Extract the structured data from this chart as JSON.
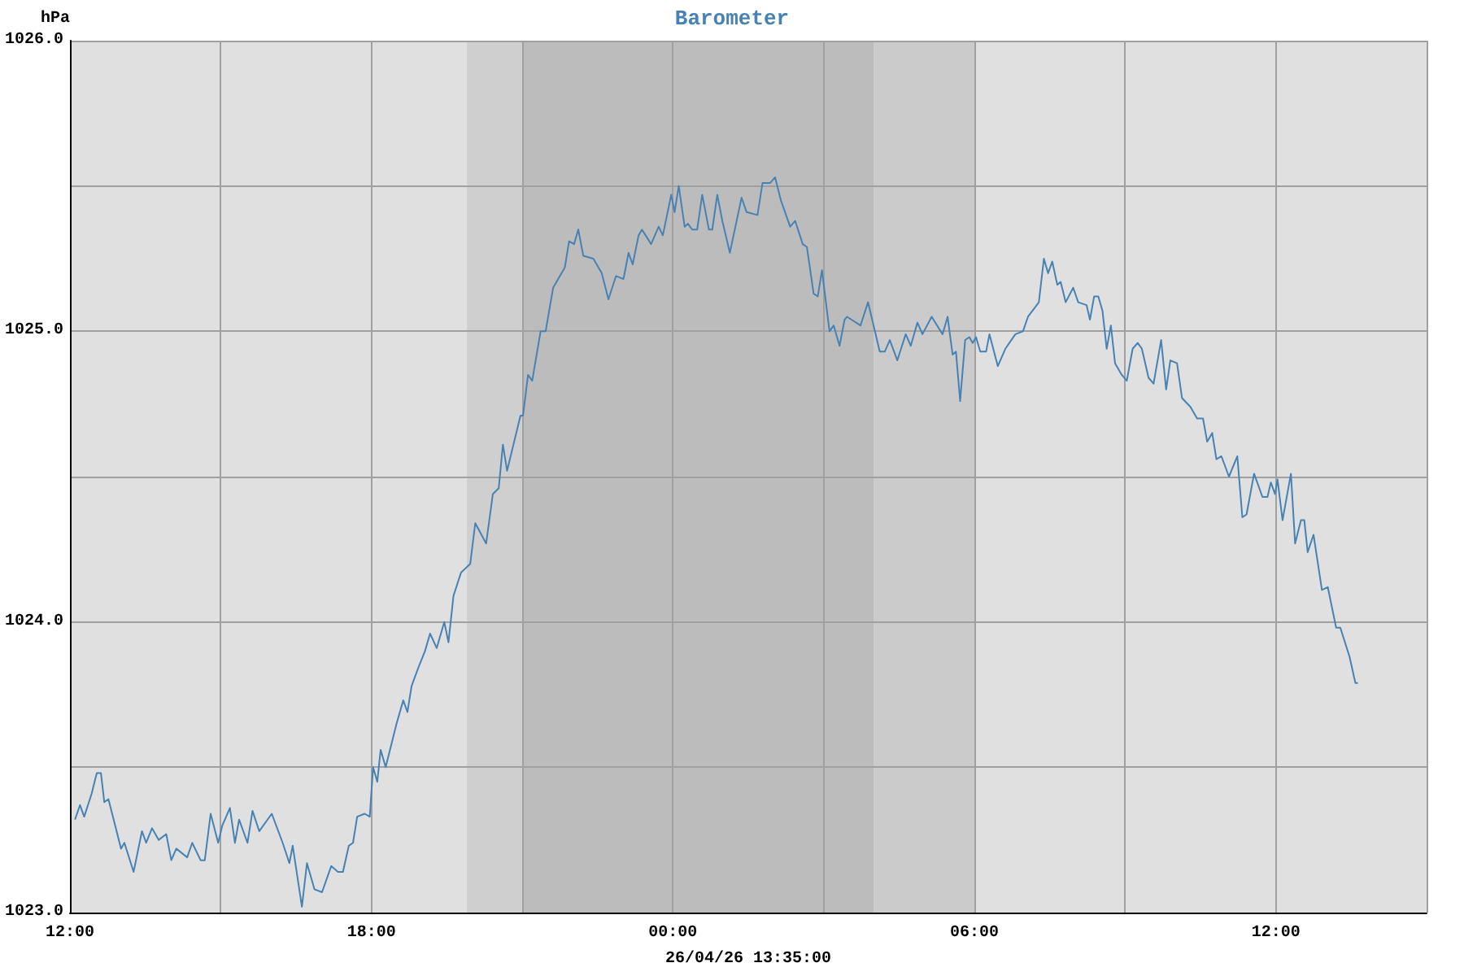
{
  "chart_data": {
    "type": "line",
    "title": "Barometer",
    "ylabel": "hPa",
    "xlabel": "26/04/26 13:35:00",
    "xlim": [
      "--04-25T12:00",
      "--04-26T15:00"
    ],
    "xticks": [
      {
        "value": "--04-25T12:00",
        "label": "12:00"
      },
      {
        "value": "--04-25T15:00",
        "label": null
      },
      {
        "value": "--04-25T18:00",
        "label": "18:00"
      },
      {
        "value": "--04-25T21:00",
        "label": null
      },
      {
        "value": "--04-26T00:00",
        "label": "00:00"
      },
      {
        "value": "--04-26T03:00",
        "label": null
      },
      {
        "value": "--04-26T06:00",
        "label": "06:00"
      },
      {
        "value": "--04-26T09:00",
        "label": null
      },
      {
        "value": "--04-26T12:00",
        "label": "12:00"
      },
      {
        "value": "--04-26T15:00",
        "label": null
      }
    ],
    "ylim": [
      1023,
      1026
    ],
    "yticks": [
      {
        "value": 1023,
        "label": "1023.0"
      },
      {
        "value": 1023.5,
        "label": null
      },
      {
        "value": 1024,
        "label": "1024.0"
      },
      {
        "value": 1024.5,
        "label": null
      },
      {
        "value": 1025,
        "label": "1025.0"
      },
      {
        "value": 1025.5,
        "label": null
      },
      {
        "value": 1026,
        "label": "1026.0"
      }
    ],
    "grid": true,
    "marker": "none",
    "line_style": "solid",
    "bands": [
      {
        "axis": "x",
        "from": "--04-25T19:54",
        "to": "--04-25T21:00",
        "color": "#cfcfcf"
      },
      {
        "axis": "x",
        "from": "--04-25T21:00",
        "to": "--04-26T04:00",
        "color": "#bcbcbc"
      },
      {
        "axis": "x",
        "from": "--04-26T04:00",
        "to": "--04-26T06:00",
        "color": "#cbcbcb"
      }
    ],
    "series": [
      {
        "color": "#4682b4",
        "x": [
          "--04-25T12:06",
          "--04-25T12:12",
          "--04-25T12:17",
          "--04-25T12:26",
          "--04-25T12:32",
          "--04-25T12:37",
          "--04-25T12:41",
          "--04-25T12:46",
          "--04-25T13:01",
          "--04-25T13:05",
          "--04-25T13:16",
          "--04-25T13:26",
          "--04-25T13:31",
          "--04-25T13:38",
          "--04-25T13:46",
          "--04-25T13:55",
          "--04-25T14:01",
          "--04-25T14:07",
          "--04-25T14:20",
          "--04-25T14:26",
          "--04-25T14:36",
          "--04-25T14:41",
          "--04-25T14:48",
          "--04-25T14:57",
          "--04-25T15:02",
          "--04-25T15:11",
          "--04-25T15:17",
          "--04-25T15:22",
          "--04-25T15:32",
          "--04-25T15:38",
          "--04-25T15:46",
          "--04-25T16:01",
          "--04-25T16:14",
          "--04-25T16:22",
          "--04-25T16:26",
          "--04-25T16:37",
          "--04-25T16:43",
          "--04-25T16:52",
          "--04-25T17:01",
          "--04-25T17:12",
          "--04-25T17:20",
          "--04-25T17:26",
          "--04-25T17:33",
          "--04-25T17:38",
          "--04-25T17:43",
          "--04-25T17:52",
          "--04-25T17:58",
          "--04-25T18:02",
          "--04-25T18:07",
          "--04-25T18:11",
          "--04-25T18:17",
          "--04-25T18:30",
          "--04-25T18:38",
          "--04-25T18:43",
          "--04-25T18:48",
          "--04-25T18:57",
          "--04-25T19:04",
          "--04-25T19:10",
          "--04-25T19:18",
          "--04-25T19:27",
          "--04-25T19:32",
          "--04-25T19:38",
          "--04-25T19:47",
          "--04-25T19:58",
          "--04-25T20:04",
          "--04-25T20:17",
          "--04-25T20:25",
          "--04-25T20:32",
          "--04-25T20:37",
          "--04-25T20:42",
          "--04-25T20:58",
          "--04-25T21:01",
          "--04-25T21:07",
          "--04-25T21:12",
          "--04-25T21:22",
          "--04-25T21:28",
          "--04-25T21:37",
          "--04-25T21:51",
          "--04-25T21:56",
          "--04-25T22:02",
          "--04-25T22:07",
          "--04-25T22:13",
          "--04-25T22:25",
          "--04-25T22:35",
          "--04-25T22:43",
          "--04-25T22:52",
          "--04-25T23:01",
          "--04-25T23:07",
          "--04-25T23:12",
          "--04-25T23:19",
          "--04-25T23:23",
          "--04-25T23:34",
          "--04-25T23:43",
          "--04-25T23:48",
          "--04-25T23:58",
          "--04-26T00:02",
          "--04-26T00:07",
          "--04-26T00:14",
          "--04-26T00:18",
          "--04-26T00:23",
          "--04-26T00:29",
          "--04-26T00:35",
          "--04-26T00:43",
          "--04-26T00:47",
          "--04-26T00:53",
          "--04-26T00:59",
          "--04-26T01:08",
          "--04-26T01:22",
          "--04-26T01:28",
          "--04-26T01:41",
          "--04-26T01:47",
          "--04-26T01:56",
          "--04-26T02:02",
          "--04-26T02:09",
          "--04-26T02:20",
          "--04-26T02:26",
          "--04-26T02:35",
          "--04-26T02:40",
          "--04-26T02:48",
          "--04-26T02:53",
          "--04-26T02:58",
          "--04-26T03:07",
          "--04-26T03:12",
          "--04-26T03:19",
          "--04-26T03:25",
          "--04-26T03:28",
          "--04-26T03:44",
          "--04-26T03:53",
          "--04-26T04:07",
          "--04-26T04:13",
          "--04-26T04:19",
          "--04-26T04:28",
          "--04-26T04:38",
          "--04-26T04:44",
          "--04-26T04:52",
          "--04-26T04:58",
          "--04-26T05:09",
          "--04-26T05:22",
          "--04-26T05:28",
          "--04-26T05:34",
          "--04-26T05:38",
          "--04-26T05:43",
          "--04-26T05:49",
          "--04-26T05:54",
          "--04-26T05:58",
          "--04-26T06:02",
          "--04-26T06:07",
          "--04-26T06:14",
          "--04-26T06:18",
          "--04-26T06:28",
          "--04-26T06:37",
          "--04-26T06:49",
          "--04-26T06:58",
          "--04-26T07:04",
          "--04-26T07:17",
          "--04-26T07:23",
          "--04-26T07:28",
          "--04-26T07:33",
          "--04-26T07:39",
          "--04-26T07:43",
          "--04-26T07:49",
          "--04-26T07:58",
          "--04-26T08:04",
          "--04-26T08:14",
          "--04-26T08:18",
          "--04-26T08:23",
          "--04-26T08:28",
          "--04-26T08:33",
          "--04-26T08:38",
          "--04-26T08:43",
          "--04-26T08:48",
          "--04-26T08:56",
          "--04-26T09:02",
          "--04-26T09:09",
          "--04-26T09:15",
          "--04-26T09:20",
          "--04-26T09:28",
          "--04-26T09:34",
          "--04-26T09:43",
          "--04-26T09:49",
          "--04-26T09:54",
          "--04-26T10:02",
          "--04-26T10:08",
          "--04-26T10:18",
          "--04-26T10:26",
          "--04-26T10:33",
          "--04-26T10:38",
          "--04-26T10:44",
          "--04-26T10:49",
          "--04-26T10:55",
          "--04-26T11:04",
          "--04-26T11:14",
          "--04-26T11:20",
          "--04-26T11:25",
          "--04-26T11:34",
          "--04-26T11:44",
          "--04-26T11:50",
          "--04-26T11:54",
          "--04-26T11:59",
          "--04-26T12:02",
          "--04-26T12:08",
          "--04-26T12:18",
          "--04-26T12:23",
          "--04-26T12:30",
          "--04-26T12:34",
          "--04-26T12:38",
          "--04-26T12:45",
          "--04-26T12:55",
          "--04-26T13:02",
          "--04-26T13:12",
          "--04-26T13:17",
          "--04-26T13:28",
          "--04-26T13:35",
          "--04-26T13:38"
        ],
        "values": [
          1023.32,
          1023.37,
          1023.33,
          1023.41,
          1023.48,
          1023.48,
          1023.38,
          1023.39,
          1023.22,
          1023.24,
          1023.14,
          1023.28,
          1023.24,
          1023.29,
          1023.25,
          1023.27,
          1023.18,
          1023.22,
          1023.19,
          1023.24,
          1023.18,
          1023.18,
          1023.34,
          1023.24,
          1023.3,
          1023.36,
          1023.24,
          1023.32,
          1023.24,
          1023.35,
          1023.28,
          1023.34,
          1023.24,
          1023.17,
          1023.23,
          1023.02,
          1023.17,
          1023.08,
          1023.07,
          1023.16,
          1023.14,
          1023.14,
          1023.23,
          1023.24,
          1023.33,
          1023.34,
          1023.33,
          1023.5,
          1023.45,
          1023.56,
          1023.5,
          1023.65,
          1023.73,
          1023.69,
          1023.78,
          1023.85,
          1023.9,
          1023.96,
          1023.91,
          1024.0,
          1023.93,
          1024.09,
          1024.17,
          1024.2,
          1024.34,
          1024.27,
          1024.44,
          1024.46,
          1024.61,
          1024.52,
          1024.71,
          1024.71,
          1024.85,
          1024.83,
          1025.0,
          1025.0,
          1025.15,
          1025.22,
          1025.31,
          1025.3,
          1025.35,
          1025.26,
          1025.25,
          1025.2,
          1025.11,
          1025.19,
          1025.18,
          1025.27,
          1025.23,
          1025.33,
          1025.35,
          1025.3,
          1025.36,
          1025.33,
          1025.47,
          1025.41,
          1025.5,
          1025.36,
          1025.37,
          1025.35,
          1025.35,
          1025.47,
          1025.35,
          1025.35,
          1025.47,
          1025.38,
          1025.27,
          1025.46,
          1025.41,
          1025.4,
          1025.51,
          1025.51,
          1025.53,
          1025.45,
          1025.36,
          1025.38,
          1025.3,
          1025.29,
          1025.13,
          1025.12,
          1025.21,
          1025.0,
          1025.02,
          1024.95,
          1025.04,
          1025.05,
          1025.02,
          1025.1,
          1024.93,
          1024.93,
          1024.97,
          1024.9,
          1024.99,
          1024.95,
          1025.03,
          1024.99,
          1025.05,
          1024.99,
          1025.05,
          1024.92,
          1024.93,
          1024.76,
          1024.97,
          1024.98,
          1024.96,
          1024.98,
          1024.93,
          1024.93,
          1024.99,
          1024.88,
          1024.94,
          1024.99,
          1025.0,
          1025.05,
          1025.1,
          1025.25,
          1025.2,
          1025.24,
          1025.16,
          1025.17,
          1025.1,
          1025.15,
          1025.1,
          1025.09,
          1025.04,
          1025.12,
          1025.12,
          1025.07,
          1024.94,
          1025.02,
          1024.89,
          1024.85,
          1024.83,
          1024.94,
          1024.96,
          1024.94,
          1024.84,
          1024.82,
          1024.97,
          1024.8,
          1024.9,
          1024.89,
          1024.77,
          1024.74,
          1024.7,
          1024.7,
          1024.62,
          1024.65,
          1024.56,
          1024.57,
          1024.5,
          1024.57,
          1024.36,
          1024.37,
          1024.51,
          1024.43,
          1024.43,
          1024.48,
          1024.44,
          1024.49,
          1024.35,
          1024.51,
          1024.27,
          1024.35,
          1024.35,
          1024.24,
          1024.3,
          1024.11,
          1024.12,
          1023.98,
          1023.98,
          1023.88,
          1023.79,
          1023.79
        ]
      }
    ]
  }
}
